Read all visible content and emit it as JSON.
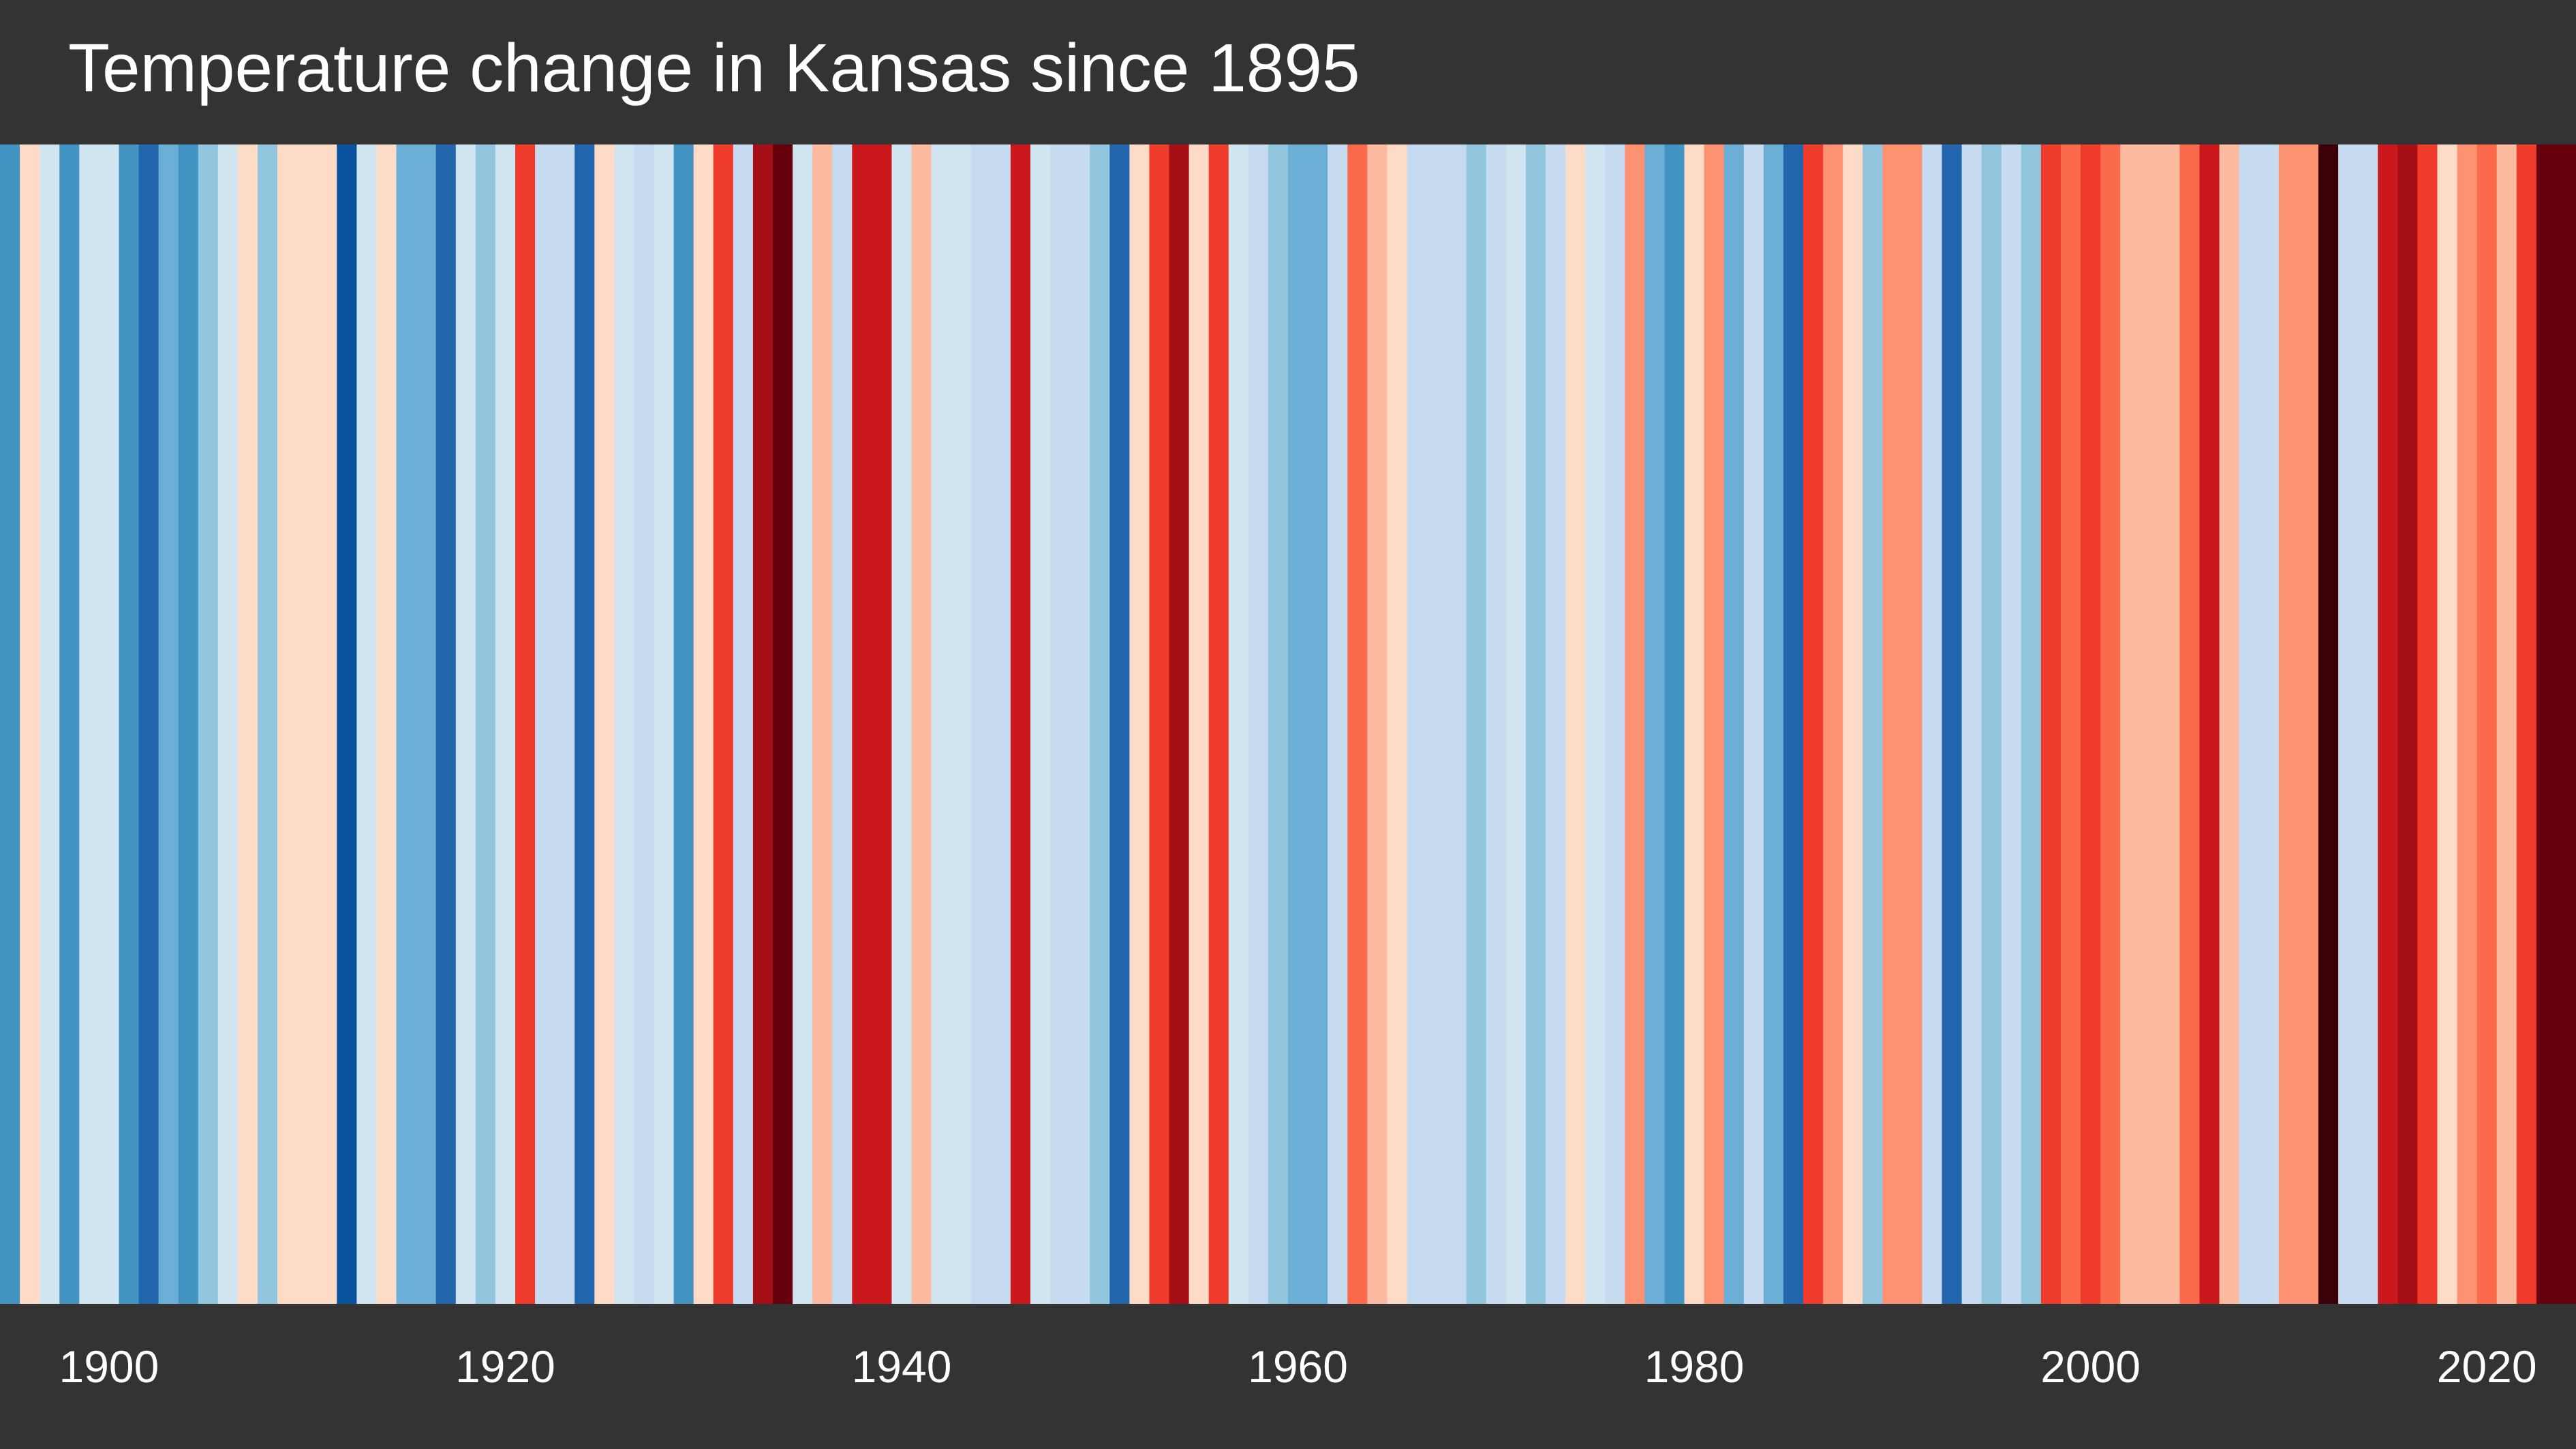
{
  "chart_data": {
    "type": "heatmap",
    "title": "Temperature change in Kansas since 1895",
    "x": [
      1895,
      1896,
      1897,
      1898,
      1899,
      1900,
      1901,
      1902,
      1903,
      1904,
      1905,
      1906,
      1907,
      1908,
      1909,
      1910,
      1911,
      1912,
      1913,
      1914,
      1915,
      1916,
      1917,
      1918,
      1919,
      1920,
      1921,
      1922,
      1923,
      1924,
      1925,
      1926,
      1927,
      1928,
      1929,
      1930,
      1931,
      1932,
      1933,
      1934,
      1935,
      1936,
      1937,
      1938,
      1939,
      1940,
      1941,
      1942,
      1943,
      1944,
      1945,
      1946,
      1947,
      1948,
      1949,
      1950,
      1951,
      1952,
      1953,
      1954,
      1955,
      1956,
      1957,
      1958,
      1959,
      1960,
      1961,
      1962,
      1963,
      1964,
      1965,
      1966,
      1967,
      1968,
      1969,
      1970,
      1971,
      1972,
      1973,
      1974,
      1975,
      1976,
      1977,
      1978,
      1979,
      1980,
      1981,
      1982,
      1983,
      1984,
      1985,
      1986,
      1987,
      1988,
      1989,
      1990,
      1991,
      1992,
      1993,
      1994,
      1995,
      1996,
      1997,
      1998,
      1999,
      2000,
      2001,
      2002,
      2003,
      2004,
      2005,
      2006,
      2007,
      2008,
      2009,
      2010,
      2011,
      2012,
      2013,
      2014,
      2015,
      2016,
      2017,
      2018,
      2019,
      2020,
      2021,
      2022,
      2023,
      2024
    ],
    "colors": [
      "#4393c3",
      "#fddbc7",
      "#d1e5f0",
      "#4393c3",
      "#d1e5f0",
      "#d1e5f0",
      "#4393c3",
      "#2166ac",
      "#6baed6",
      "#4393c3",
      "#92c5de",
      "#d1e5f0",
      "#fddbc7",
      "#92c5de",
      "#fddbc7",
      "#fddbc7",
      "#fddbc7",
      "#08519c",
      "#d1e5f0",
      "#fddbc7",
      "#6baed6",
      "#6baed6",
      "#2166ac",
      "#d1e5f0",
      "#92c5de",
      "#d1e5f0",
      "#ef3b2c",
      "#c6dbef",
      "#c6dbef",
      "#2166ac",
      "#fddbc7",
      "#d1e5f0",
      "#c6dbef",
      "#d1e5f0",
      "#4393c3",
      "#fddbc7",
      "#ef3b2c",
      "#c6dbef",
      "#a50f15",
      "#67000d",
      "#d1e5f0",
      "#fcbba1",
      "#c6dbef",
      "#cb181d",
      "#cb181d",
      "#d1e5f0",
      "#fcbba1",
      "#d1e5f0",
      "#d1e5f0",
      "#c6dbef",
      "#c6dbef",
      "#cb181d",
      "#d1e5f0",
      "#c6dbef",
      "#c6dbef",
      "#92c5de",
      "#2166ac",
      "#fddbc7",
      "#ef3b2c",
      "#a50f15",
      "#fddbc7",
      "#ef3b2c",
      "#d1e5f0",
      "#c6dbef",
      "#92c5de",
      "#6baed6",
      "#6baed6",
      "#c6dbef",
      "#fb6a4a",
      "#fcbba1",
      "#fddbc7",
      "#c6dbef",
      "#c6dbef",
      "#c6dbef",
      "#92c5de",
      "#c6dbef",
      "#d1e5f0",
      "#92c5de",
      "#c6dbef",
      "#fddbc7",
      "#d1e5f0",
      "#c6dbef",
      "#fc9272",
      "#6baed6",
      "#4393c3",
      "#fddbc7",
      "#fc9272",
      "#6baed6",
      "#c6dbef",
      "#6baed6",
      "#2166ac",
      "#ef3b2c",
      "#fc9272",
      "#fddbc7",
      "#92c5de",
      "#fc9272",
      "#fc9272",
      "#c6dbef",
      "#2166ac",
      "#c6dbef",
      "#92c5de",
      "#c6dbef",
      "#92c5de",
      "#ef3b2c",
      "#fb6a4a",
      "#ef3b2c",
      "#fb6a4a",
      "#fcbba1",
      "#fcbba1",
      "#fcbba1",
      "#fb6a4a",
      "#cb181d",
      "#fcbba1",
      "#c6dbef",
      "#c6dbef",
      "#fc9272",
      "#fc9272",
      "#3d0008",
      "#c6dbef",
      "#c6dbef",
      "#cb181d",
      "#a50f15",
      "#ef3b2c",
      "#fddbc7",
      "#fc9272",
      "#fb6a4a",
      "#fcbba1",
      "#ef3b2c",
      "#67000d",
      "#67000d"
    ],
    "xticks": [
      1900,
      1920,
      1940,
      1960,
      1980,
      2000,
      2020
    ],
    "xlim": [
      1895,
      2024
    ],
    "grid": false,
    "legend": "none"
  }
}
